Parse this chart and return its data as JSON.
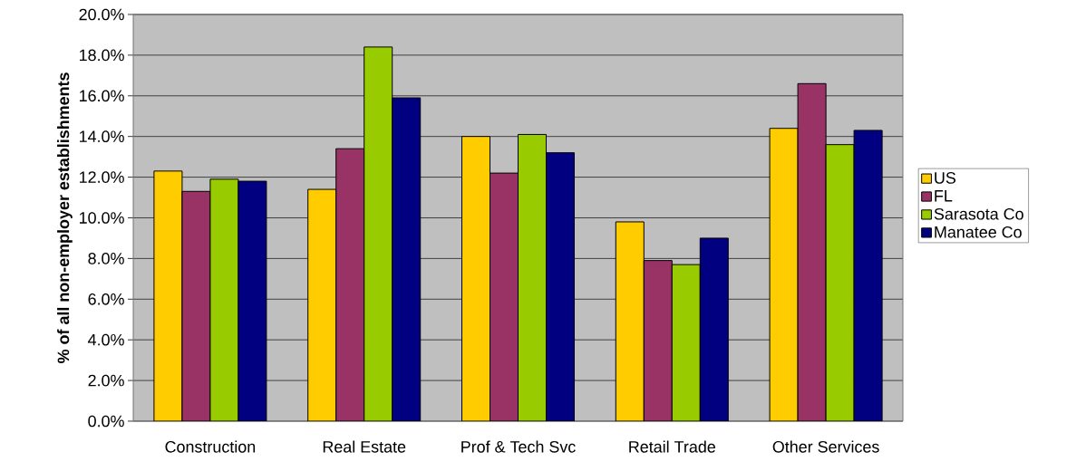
{
  "chart_data": {
    "type": "bar",
    "ylabel": "% of all non-employer establishments",
    "categories": [
      "Construction",
      "Real Estate",
      "Prof & Tech Svc",
      "Retail Trade",
      "Other Services"
    ],
    "series": [
      {
        "name": "US",
        "color": "#ffcc00",
        "values": [
          12.3,
          11.4,
          14.0,
          9.8,
          14.4
        ]
      },
      {
        "name": "FL",
        "color": "#993366",
        "values": [
          11.3,
          13.4,
          12.2,
          7.9,
          16.6
        ]
      },
      {
        "name": "Sarasota Co",
        "color": "#99cc00",
        "values": [
          11.9,
          18.4,
          14.1,
          7.7,
          13.6
        ]
      },
      {
        "name": "Manatee Co",
        "color": "#000080",
        "values": [
          11.8,
          15.9,
          13.2,
          9.0,
          14.3
        ]
      }
    ],
    "ylim": [
      0,
      20
    ],
    "yticks": [
      {
        "value": 0,
        "label": "0.0%"
      },
      {
        "value": 2,
        "label": "2.0%"
      },
      {
        "value": 4,
        "label": "4.0%"
      },
      {
        "value": 6,
        "label": "6.0%"
      },
      {
        "value": 8,
        "label": "8.0%"
      },
      {
        "value": 10,
        "label": "10.0%"
      },
      {
        "value": 12,
        "label": "12.0%"
      },
      {
        "value": 14,
        "label": "14.0%"
      },
      {
        "value": 16,
        "label": "16.0%"
      },
      {
        "value": 18,
        "label": "18.0%"
      },
      {
        "value": 20,
        "label": "20.0%"
      }
    ],
    "grid": "y",
    "legend": "right"
  }
}
